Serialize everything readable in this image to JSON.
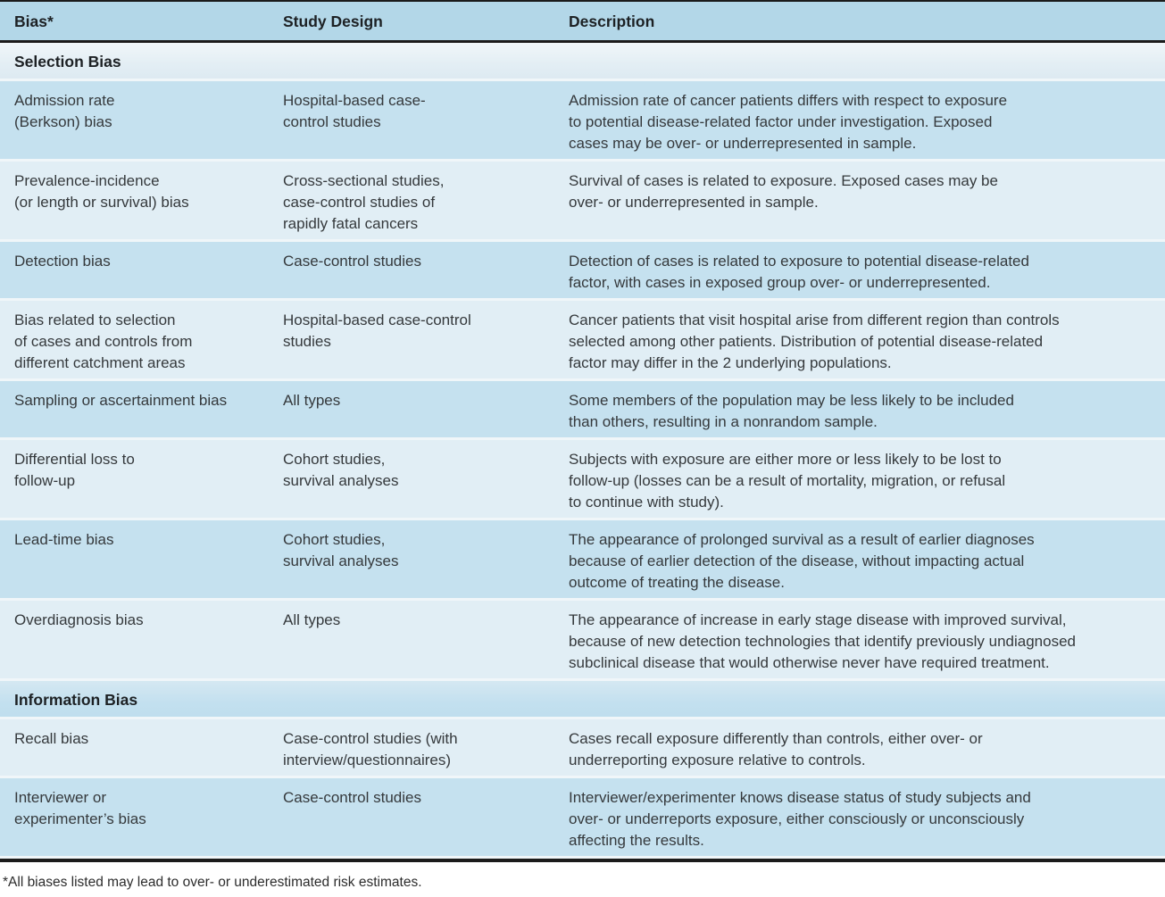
{
  "colors": {
    "header_bg": "#b3d7e8",
    "row_dark": "#c5e1ef",
    "row_light": "#e1eef5",
    "section_light_top": "#f0f6f9",
    "section_dark_top": "#d5e8f2",
    "separator": "#f0f6f9",
    "rule_dark": "#1b1b1b",
    "text_dark": "#1d2124",
    "text_body": "#35393c"
  },
  "table": {
    "columns": [
      {
        "label": "Bias*"
      },
      {
        "label": "Study Design"
      },
      {
        "label": "Description"
      }
    ],
    "sections": [
      {
        "title": "Selection Bias",
        "shade": "light",
        "rows": [
          {
            "shade": "dark",
            "bias": "Admission rate\n(Berkson) bias",
            "design": "Hospital-based case-\ncontrol studies",
            "description": "Admission rate of cancer patients differs with respect to exposure\nto potential disease-related factor under investigation. Exposed\ncases may be over- or underrepresented in sample."
          },
          {
            "shade": "light",
            "bias": "Prevalence-incidence\n(or length or survival) bias",
            "design": "Cross-sectional studies,\ncase-control studies of\nrapidly fatal cancers",
            "description": "Survival of cases is related to exposure. Exposed cases may be\nover- or underrepresented in sample."
          },
          {
            "shade": "dark",
            "bias": "Detection bias",
            "design": "Case-control studies",
            "description": "Detection of cases is related to exposure to potential disease-related\nfactor, with cases in exposed group over- or underrepresented."
          },
          {
            "shade": "light",
            "bias": "Bias related to selection\nof cases and controls from\ndifferent catchment areas",
            "design": "Hospital-based case-control\nstudies",
            "description": "Cancer patients that visit hospital arise from different region than controls\nselected among other patients. Distribution of potential disease-related\nfactor may differ in the 2 underlying populations."
          },
          {
            "shade": "dark",
            "bias": "Sampling or ascertainment bias",
            "design": "All types",
            "description": "Some members of the population may be less likely to be included\nthan others, resulting in a nonrandom sample."
          },
          {
            "shade": "light",
            "bias": "Differential loss to\nfollow-up",
            "design": "Cohort studies,\nsurvival analyses",
            "description": "Subjects with exposure are either more or less likely to be lost to\nfollow-up (losses can be a result of mortality, migration, or refusal\nto continue with study)."
          },
          {
            "shade": "dark",
            "bias": "Lead-time bias",
            "design": "Cohort studies,\nsurvival analyses",
            "description": "The appearance of prolonged survival as a result of earlier diagnoses\nbecause of earlier detection of the disease, without impacting actual\noutcome of treating the disease."
          },
          {
            "shade": "light",
            "bias": "Overdiagnosis bias",
            "design": "All types",
            "description": "The appearance of increase in early stage disease with improved survival,\nbecause of new detection technologies that identify previously undiagnosed\nsubclinical disease that would otherwise never have required treatment."
          }
        ]
      },
      {
        "title": "Information Bias",
        "shade": "dark",
        "rows": [
          {
            "shade": "light",
            "bias": "Recall bias",
            "design": "Case-control studies (with\ninterview/questionnaires)",
            "description": "Cases recall exposure differently than controls, either over- or\nunderreporting exposure relative to controls."
          },
          {
            "shade": "dark",
            "bias": "Interviewer or\nexperimenter’s bias",
            "design": "Case-control studies",
            "description": "Interviewer/experimenter knows disease status of study subjects and\nover- or underreports exposure, either consciously or unconsciously\naffecting the results."
          }
        ]
      }
    ],
    "footnote": "*All biases listed may lead to over- or underestimated risk estimates."
  }
}
